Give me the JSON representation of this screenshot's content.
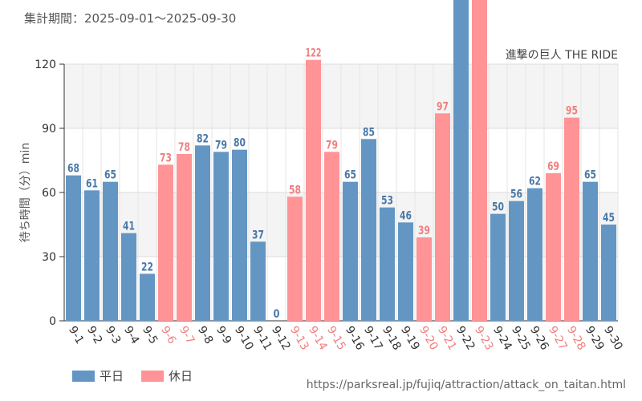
{
  "header": {
    "period": "集計期間：2025-09-01～2025-09-30"
  },
  "footer": {
    "url": "https://parksreal.jp/fujiq/attraction/attack_on_taitan.html"
  },
  "colors": {
    "weekday": "#6496c3",
    "holiday": "#ff9396",
    "holiday_text": "#f08080",
    "weekday_text": "#4a79a8"
  },
  "chart_data": {
    "type": "bar",
    "title": "進撃の巨人 THE RIDE",
    "ylabel": "待ち時間（分）min",
    "xlabel": "",
    "ylim": [
      0,
      120
    ],
    "yticks": [
      0,
      30,
      60,
      90,
      120
    ],
    "grid": true,
    "categories": [
      "9-1",
      "9-2",
      "9-3",
      "9-4",
      "9-5",
      "9-6",
      "9-7",
      "9-8",
      "9-9",
      "9-10",
      "9-11",
      "9-12",
      "9-13",
      "9-14",
      "9-15",
      "9-16",
      "9-17",
      "9-18",
      "9-19",
      "9-20",
      "9-21",
      "9-22",
      "9-23",
      "9-24",
      "9-25",
      "9-26",
      "9-27",
      "9-28",
      "9-29",
      "9-30"
    ],
    "values": [
      68,
      61,
      65,
      41,
      22,
      73,
      78,
      82,
      79,
      80,
      37,
      0,
      58,
      122,
      79,
      65,
      85,
      53,
      46,
      39,
      97,
      null,
      null,
      50,
      56,
      62,
      69,
      95,
      65,
      45
    ],
    "labels": [
      "68",
      "61",
      "65",
      "41",
      "22",
      "73",
      "78",
      "82",
      "79",
      "80",
      "37",
      "0",
      "58",
      "122",
      "79",
      "65",
      "85",
      "53",
      "46",
      "39",
      "97",
      "",
      "",
      "50",
      "56",
      "62",
      "69",
      "95",
      "65",
      "45"
    ],
    "offscale": [
      false,
      false,
      false,
      false,
      false,
      false,
      false,
      false,
      false,
      false,
      false,
      false,
      false,
      false,
      false,
      false,
      false,
      false,
      false,
      false,
      false,
      true,
      true,
      false,
      false,
      false,
      false,
      false,
      false,
      false
    ],
    "holiday": [
      false,
      false,
      false,
      false,
      false,
      true,
      true,
      false,
      false,
      false,
      false,
      false,
      true,
      true,
      true,
      false,
      false,
      false,
      false,
      true,
      true,
      false,
      true,
      false,
      false,
      false,
      true,
      true,
      false,
      false
    ],
    "legend": [
      {
        "label": "平日",
        "series": "weekday"
      },
      {
        "label": "休日",
        "series": "holiday"
      }
    ]
  }
}
